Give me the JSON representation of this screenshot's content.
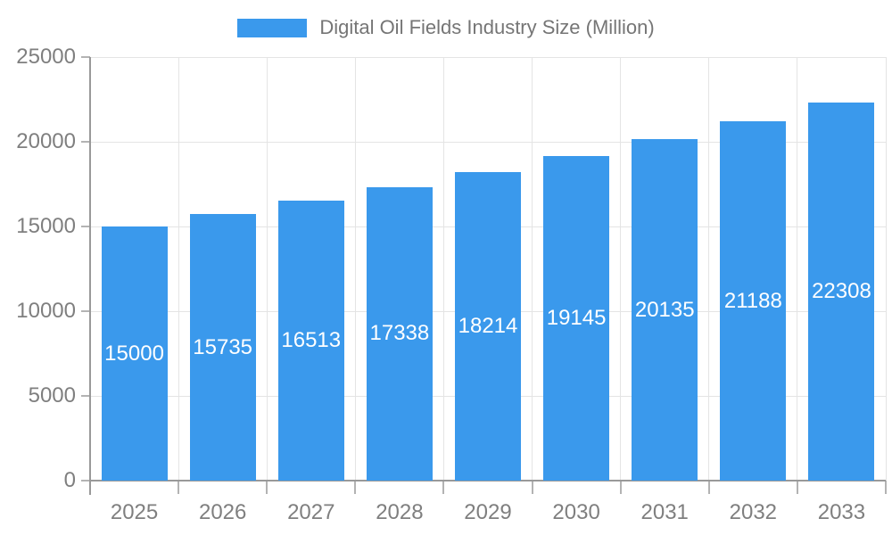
{
  "chart_data": {
    "type": "bar",
    "title": "Digital Oil Fields Industry Size (Million)",
    "legend": [
      "Digital Oil Fields Industry Size (Million)"
    ],
    "legend_position": "top",
    "categories": [
      "2025",
      "2026",
      "2027",
      "2028",
      "2029",
      "2030",
      "2031",
      "2032",
      "2033"
    ],
    "values": [
      15000,
      15735,
      16513,
      17338,
      18214,
      19145,
      20135,
      21188,
      22308
    ],
    "xlabel": "",
    "ylabel": "",
    "ylim": [
      0,
      25000
    ],
    "yticks": [
      0,
      5000,
      10000,
      15000,
      20000,
      25000
    ],
    "grid": true,
    "bar_label_position": "inside-center",
    "colors": {
      "bar": "#3A99EC",
      "bar_label": "#FFFFFF",
      "axis_line": "#999999",
      "tick": "#B3B3B3",
      "grid_line": "#E4E4E4",
      "tick_label": "#7F7F7F",
      "legend_text": "#757575",
      "background": "#FFFFFF"
    }
  }
}
